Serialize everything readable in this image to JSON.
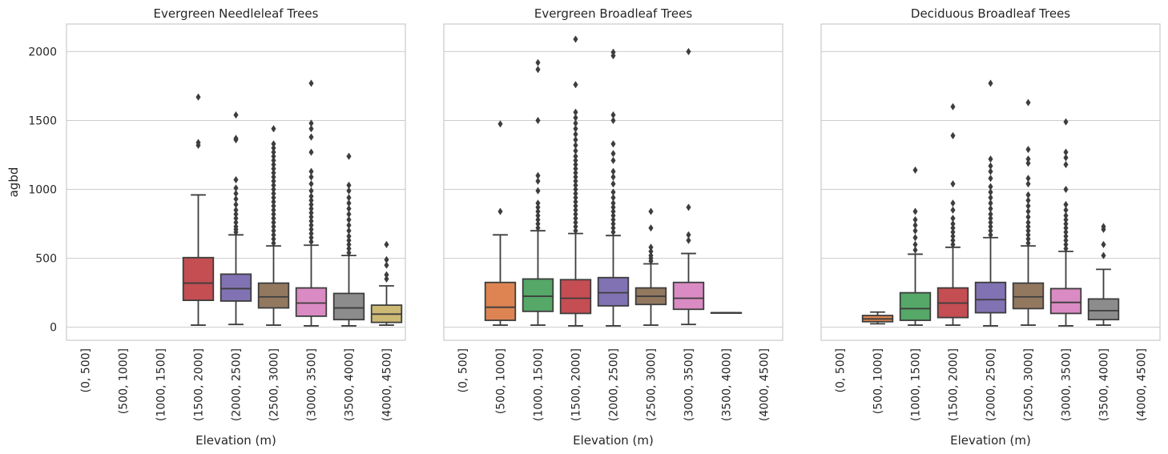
{
  "colors": {
    "palette": [
      "#4c72b0",
      "#dd8452",
      "#55a868",
      "#c44e52",
      "#8172b3",
      "#937860",
      "#da8bc3",
      "#8c8c8c",
      "#ccb974"
    ],
    "line": "#3d3d3d",
    "grid": "#cccccc",
    "text": "#262626"
  },
  "shared": {
    "ylabel": "agbd",
    "xlabel": "Elevation (m)",
    "yticks": [
      0,
      500,
      1000,
      1500,
      2000
    ],
    "ylim": [
      -95,
      2200
    ]
  },
  "chart_data": [
    {
      "type": "box",
      "title": "Evergreen Needleleaf Trees",
      "xlabel": "Elevation (m)",
      "ylabel": "agbd",
      "ylim": [
        -95,
        2200
      ],
      "grid": true,
      "categories": [
        "(0, 500]",
        "(500, 1000]",
        "(1000, 1500]",
        "(1500, 2000]",
        "(2000, 2500]",
        "(2500, 3000]",
        "(3000, 3500]",
        "(3500, 4000]",
        "(4000, 4500]"
      ],
      "boxes": [
        null,
        null,
        null,
        {
          "whislo": 15,
          "q1": 195,
          "med": 320,
          "q3": 505,
          "whishi": 960,
          "fliers": [
            1320,
            1340,
            1670
          ]
        },
        {
          "whislo": 20,
          "q1": 190,
          "med": 280,
          "q3": 385,
          "whishi": 670,
          "fliers": [
            690,
            710,
            730,
            760,
            790,
            820,
            850,
            890,
            930,
            970,
            1010,
            1070,
            1360,
            1370,
            1540
          ]
        },
        {
          "whislo": 15,
          "q1": 140,
          "med": 220,
          "q3": 320,
          "whishi": 590,
          "fliers": [
            610,
            640,
            670,
            700,
            730,
            760,
            790,
            820,
            850,
            880,
            910,
            940,
            970,
            1000,
            1030,
            1060,
            1090,
            1120,
            1150,
            1180,
            1210,
            1240,
            1270,
            1300,
            1330,
            1440
          ]
        },
        {
          "whislo": 10,
          "q1": 80,
          "med": 175,
          "q3": 285,
          "whishi": 595,
          "fliers": [
            620,
            650,
            680,
            710,
            740,
            770,
            800,
            830,
            860,
            890,
            920,
            950,
            990,
            1040,
            1090,
            1130,
            1270,
            1380,
            1440,
            1480,
            1770
          ]
        },
        {
          "whislo": 10,
          "q1": 55,
          "med": 140,
          "q3": 245,
          "whishi": 520,
          "fliers": [
            540,
            570,
            600,
            630,
            660,
            700,
            740,
            780,
            820,
            860,
            900,
            940,
            990,
            1030,
            1240
          ]
        },
        {
          "whislo": 15,
          "q1": 35,
          "med": 95,
          "q3": 160,
          "whishi": 300,
          "fliers": [
            350,
            380,
            450,
            490,
            600
          ]
        }
      ]
    },
    {
      "type": "box",
      "title": "Evergreen Broadleaf Trees",
      "xlabel": "Elevation (m)",
      "ylabel": "",
      "ylim": [
        -95,
        2200
      ],
      "grid": true,
      "categories": [
        "(0, 500]",
        "(500, 1000]",
        "(1000, 1500]",
        "(1500, 2000]",
        "(2000, 2500]",
        "(2500, 3000]",
        "(3000, 3500]",
        "(3500, 4000]",
        "(4000, 4500]"
      ],
      "boxes": [
        null,
        {
          "whislo": 15,
          "q1": 50,
          "med": 145,
          "q3": 325,
          "whishi": 670,
          "fliers": [
            840,
            1475
          ]
        },
        {
          "whislo": 15,
          "q1": 115,
          "med": 225,
          "q3": 350,
          "whishi": 700,
          "fliers": [
            720,
            750,
            780,
            810,
            840,
            870,
            900,
            990,
            1060,
            1100,
            1500,
            1870,
            1920
          ]
        },
        {
          "whislo": 10,
          "q1": 100,
          "med": 210,
          "q3": 345,
          "whishi": 680,
          "fliers": [
            700,
            730,
            760,
            790,
            820,
            850,
            880,
            910,
            940,
            970,
            1000,
            1030,
            1060,
            1090,
            1120,
            1150,
            1180,
            1210,
            1240,
            1280,
            1320,
            1360,
            1400,
            1440,
            1480,
            1520,
            1560,
            1760,
            2090
          ]
        },
        {
          "whislo": 10,
          "q1": 155,
          "med": 250,
          "q3": 360,
          "whishi": 665,
          "fliers": [
            690,
            720,
            750,
            780,
            810,
            840,
            870,
            900,
            940,
            980,
            1040,
            1090,
            1130,
            1210,
            1260,
            1330,
            1500,
            1540,
            1970,
            1995
          ]
        },
        {
          "whislo": 15,
          "q1": 165,
          "med": 225,
          "q3": 285,
          "whishi": 460,
          "fliers": [
            480,
            500,
            520,
            550,
            580,
            720,
            840
          ]
        },
        {
          "whislo": 20,
          "q1": 130,
          "med": 210,
          "q3": 325,
          "whishi": 535,
          "fliers": [
            630,
            670,
            870,
            2000
          ]
        },
        {
          "whislo": 105,
          "q1": 105,
          "med": 105,
          "q3": 105,
          "whishi": 105,
          "fliers": []
        },
        null
      ]
    },
    {
      "type": "box",
      "title": "Deciduous Broadleaf Trees",
      "xlabel": "Elevation (m)",
      "ylabel": "",
      "ylim": [
        -95,
        2200
      ],
      "grid": true,
      "categories": [
        "(0, 500]",
        "(500, 1000]",
        "(1000, 1500]",
        "(1500, 2000]",
        "(2000, 2500]",
        "(2500, 3000]",
        "(3000, 3500]",
        "(3500, 4000]",
        "(4000, 4500]"
      ],
      "boxes": [
        null,
        {
          "whislo": 25,
          "q1": 40,
          "med": 60,
          "q3": 85,
          "whishi": 110,
          "fliers": []
        },
        {
          "whislo": 15,
          "q1": 50,
          "med": 135,
          "q3": 250,
          "whishi": 530,
          "fliers": [
            560,
            600,
            650,
            700,
            740,
            780,
            840,
            1140
          ]
        },
        {
          "whislo": 15,
          "q1": 70,
          "med": 175,
          "q3": 285,
          "whishi": 580,
          "fliers": [
            600,
            630,
            660,
            690,
            720,
            750,
            790,
            850,
            900,
            1040,
            1390,
            1600
          ]
        },
        {
          "whislo": 10,
          "q1": 105,
          "med": 200,
          "q3": 325,
          "whishi": 650,
          "fliers": [
            670,
            700,
            730,
            760,
            790,
            820,
            860,
            900,
            940,
            980,
            1020,
            1080,
            1130,
            1170,
            1220,
            1770
          ]
        },
        {
          "whislo": 15,
          "q1": 135,
          "med": 220,
          "q3": 320,
          "whishi": 590,
          "fliers": [
            610,
            640,
            670,
            700,
            730,
            760,
            800,
            840,
            880,
            920,
            960,
            1040,
            1080,
            1190,
            1220,
            1290,
            1630
          ]
        },
        {
          "whislo": 10,
          "q1": 100,
          "med": 180,
          "q3": 280,
          "whishi": 550,
          "fliers": [
            570,
            600,
            630,
            660,
            690,
            720,
            750,
            780,
            810,
            850,
            890,
            1000,
            1180,
            1230,
            1270,
            1490
          ]
        },
        {
          "whislo": 15,
          "q1": 55,
          "med": 120,
          "q3": 205,
          "whishi": 420,
          "fliers": [
            520,
            600,
            710,
            730
          ]
        },
        null
      ]
    }
  ]
}
